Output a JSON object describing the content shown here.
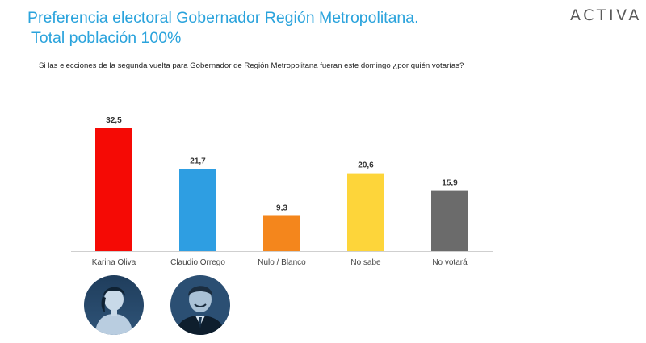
{
  "header": {
    "title": "Preferencia electoral Gobernador Región Metropolitana.",
    "subtitle": "Total población 100%",
    "question": "Si las elecciones de la segunda vuelta para Gobernador de Región Metropolitana fueran este domingo ¿por quién votarías?",
    "logo_text": "ACTIVA"
  },
  "chart_data": {
    "type": "bar",
    "title": "Preferencia electoral Gobernador Región Metropolitana.",
    "subtitle": "Total población 100%",
    "categories": [
      "Karina Oliva",
      "Claudio Orrego",
      "Nulo / Blanco",
      "No sabe",
      "No votará"
    ],
    "values": [
      32.5,
      21.7,
      9.3,
      20.6,
      15.9
    ],
    "value_labels": [
      "32,5",
      "21,7",
      "9,3",
      "20,6",
      "15,9"
    ],
    "colors": [
      "#f50a05",
      "#2e9ee2",
      "#f4861c",
      "#fdd53a",
      "#6b6b6b"
    ],
    "grid": false,
    "legend": "none",
    "ylim": [
      0,
      35
    ]
  },
  "portraits": [
    {
      "name": "Karina Oliva",
      "icon": "portrait-woman-icon"
    },
    {
      "name": "Claudio Orrego",
      "icon": "portrait-man-icon"
    }
  ]
}
